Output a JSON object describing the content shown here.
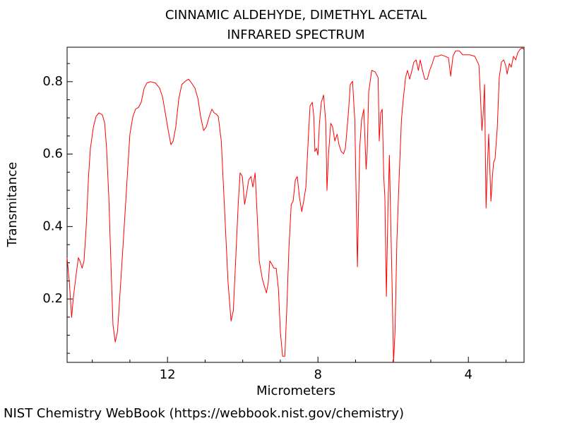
{
  "chart_data": {
    "type": "line",
    "title": "CINNAMIC ALDEHYDE, DIMETHYL ACETAL",
    "subtitle": "INFRARED SPECTRUM",
    "x_label": "Micrometers",
    "y_label": "Transmitance",
    "source": "NIST Chemistry WebBook (https://webbook.nist.gov/chemistry)",
    "xlim": [
      14.67,
      2.52
    ],
    "ylim": [
      0.025,
      0.895
    ],
    "xticks": [
      12,
      8,
      4
    ],
    "yticks": [
      0.2,
      0.4,
      0.6,
      0.8
    ],
    "xticks_minor": [
      14,
      13,
      11,
      10,
      9,
      7,
      6,
      5,
      3
    ],
    "yticks_minor": [
      0.05,
      0.1,
      0.15,
      0.25,
      0.3,
      0.35,
      0.45,
      0.5,
      0.55,
      0.65,
      0.7,
      0.75,
      0.85
    ],
    "grid": false,
    "x": [
      14.67,
      14.61,
      14.55,
      14.5,
      14.42,
      14.37,
      14.33,
      14.27,
      14.22,
      14.16,
      14.1,
      14.05,
      13.97,
      13.9,
      13.82,
      13.73,
      13.67,
      13.62,
      13.56,
      13.5,
      13.45,
      13.39,
      13.33,
      13.28,
      13.22,
      13.15,
      13.07,
      13.0,
      12.92,
      12.85,
      12.77,
      12.7,
      12.62,
      12.55,
      12.45,
      12.32,
      12.21,
      12.13,
      12.06,
      11.98,
      11.91,
      11.85,
      11.78,
      11.7,
      11.62,
      11.53,
      11.44,
      11.36,
      11.27,
      11.19,
      11.12,
      11.04,
      10.97,
      10.89,
      10.82,
      10.76,
      10.7,
      10.65,
      10.57,
      10.48,
      10.39,
      10.31,
      10.25,
      10.18,
      10.12,
      10.07,
      10.01,
      9.95,
      9.9,
      9.84,
      9.78,
      9.73,
      9.67,
      9.62,
      9.56,
      9.48,
      9.43,
      9.37,
      9.32,
      9.28,
      9.22,
      9.17,
      9.11,
      9.05,
      9.0,
      8.94,
      8.88,
      8.83,
      8.77,
      8.71,
      8.66,
      8.6,
      8.55,
      8.49,
      8.43,
      8.38,
      8.32,
      8.26,
      8.21,
      8.15,
      8.11,
      8.08,
      8.04,
      8.0,
      7.96,
      7.91,
      7.85,
      7.79,
      7.76,
      7.72,
      7.66,
      7.61,
      7.55,
      7.49,
      7.44,
      7.38,
      7.32,
      7.27,
      7.19,
      7.14,
      7.08,
      7.02,
      6.95,
      6.89,
      6.84,
      6.78,
      6.72,
      6.69,
      6.65,
      6.57,
      6.48,
      6.4,
      6.37,
      6.33,
      6.29,
      6.25,
      6.22,
      6.18,
      6.14,
      6.1,
      6.07,
      6.03,
      5.99,
      5.95,
      5.9,
      5.84,
      5.78,
      5.73,
      5.67,
      5.62,
      5.56,
      5.5,
      5.45,
      5.39,
      5.33,
      5.28,
      5.22,
      5.16,
      5.09,
      5.03,
      4.96,
      4.9,
      4.81,
      4.72,
      4.62,
      4.53,
      4.47,
      4.41,
      4.34,
      4.24,
      4.15,
      4.06,
      3.96,
      3.83,
      3.72,
      3.68,
      3.64,
      3.61,
      3.57,
      3.53,
      3.49,
      3.46,
      3.4,
      3.36,
      3.33,
      3.29,
      3.23,
      3.18,
      3.12,
      3.06,
      3.01,
      2.97,
      2.91,
      2.86,
      2.8,
      2.74,
      2.69,
      2.63,
      2.57,
      2.52
    ],
    "series": [
      {
        "color": "#ff0000",
        "values": [
          0.314,
          0.246,
          0.149,
          0.207,
          0.275,
          0.314,
          0.305,
          0.285,
          0.305,
          0.402,
          0.538,
          0.616,
          0.675,
          0.704,
          0.714,
          0.708,
          0.685,
          0.616,
          0.48,
          0.285,
          0.129,
          0.081,
          0.11,
          0.188,
          0.285,
          0.402,
          0.538,
          0.655,
          0.704,
          0.724,
          0.729,
          0.743,
          0.782,
          0.796,
          0.8,
          0.796,
          0.782,
          0.757,
          0.714,
          0.665,
          0.626,
          0.636,
          0.675,
          0.753,
          0.792,
          0.801,
          0.807,
          0.796,
          0.782,
          0.753,
          0.704,
          0.665,
          0.675,
          0.704,
          0.724,
          0.714,
          0.71,
          0.704,
          0.636,
          0.441,
          0.246,
          0.139,
          0.168,
          0.324,
          0.461,
          0.548,
          0.538,
          0.461,
          0.49,
          0.529,
          0.538,
          0.509,
          0.548,
          0.441,
          0.305,
          0.256,
          0.237,
          0.217,
          0.246,
          0.305,
          0.295,
          0.285,
          0.285,
          0.227,
          0.11,
          0.042,
          0.042,
          0.168,
          0.344,
          0.461,
          0.47,
          0.529,
          0.538,
          0.48,
          0.441,
          0.47,
          0.509,
          0.636,
          0.733,
          0.743,
          0.704,
          0.607,
          0.616,
          0.597,
          0.685,
          0.743,
          0.763,
          0.685,
          0.5,
          0.597,
          0.685,
          0.675,
          0.636,
          0.655,
          0.626,
          0.607,
          0.601,
          0.616,
          0.714,
          0.792,
          0.801,
          0.694,
          0.289,
          0.616,
          0.694,
          0.724,
          0.558,
          0.607,
          0.772,
          0.831,
          0.827,
          0.811,
          0.636,
          0.714,
          0.724,
          0.538,
          0.48,
          0.207,
          0.441,
          0.597,
          0.441,
          0.246,
          0.026,
          0.11,
          0.363,
          0.538,
          0.694,
          0.753,
          0.811,
          0.831,
          0.807,
          0.831,
          0.854,
          0.86,
          0.831,
          0.86,
          0.831,
          0.807,
          0.807,
          0.831,
          0.85,
          0.87,
          0.87,
          0.874,
          0.87,
          0.866,
          0.815,
          0.87,
          0.885,
          0.885,
          0.874,
          0.874,
          0.874,
          0.87,
          0.846,
          0.763,
          0.665,
          0.704,
          0.792,
          0.451,
          0.577,
          0.655,
          0.47,
          0.538,
          0.577,
          0.587,
          0.675,
          0.811,
          0.854,
          0.86,
          0.846,
          0.821,
          0.85,
          0.84,
          0.87,
          0.86,
          0.879,
          0.889,
          0.893,
          0.889
        ]
      }
    ]
  }
}
